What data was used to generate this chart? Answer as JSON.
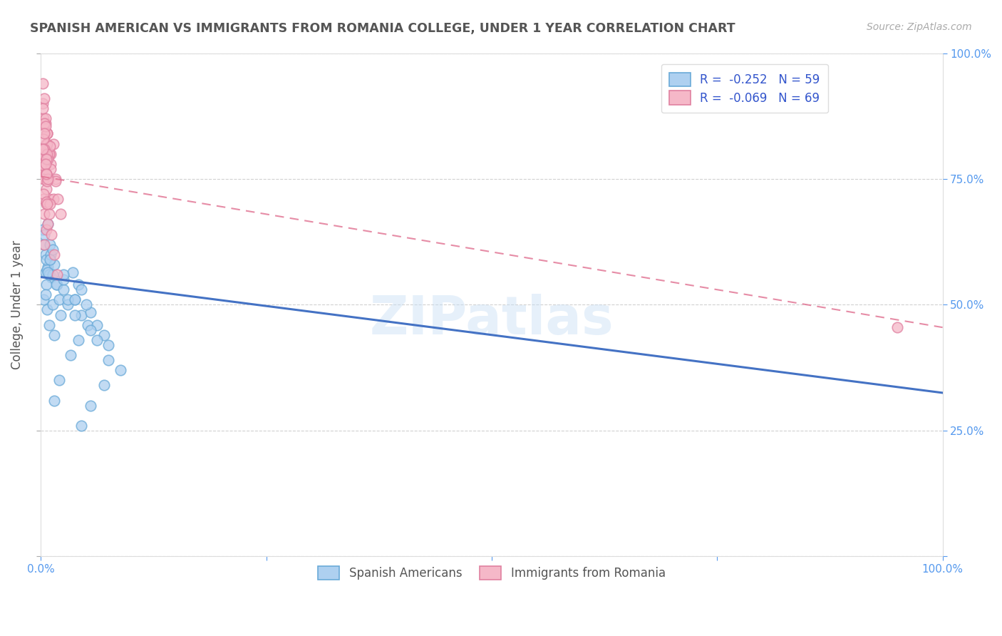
{
  "title": "SPANISH AMERICAN VS IMMIGRANTS FROM ROMANIA COLLEGE, UNDER 1 YEAR CORRELATION CHART",
  "source": "Source: ZipAtlas.com",
  "ylabel": "College, Under 1 year",
  "xlim": [
    0,
    1
  ],
  "ylim": [
    0,
    1
  ],
  "series1_label": "Spanish Americans",
  "series1_R": -0.252,
  "series1_N": 59,
  "series1_color": "#aed0f0",
  "series1_edge_color": "#6aaad8",
  "series1_line_color": "#4472c4",
  "series2_label": "Immigrants from Romania",
  "series2_R": -0.069,
  "series2_N": 69,
  "series2_color": "#f5b8c8",
  "series2_edge_color": "#e080a0",
  "series2_line_color": "#e07090",
  "legend_R_color": "#3355cc",
  "ytick_label_color": "#5599ee",
  "watermark": "ZIPatlas",
  "background_color": "#ffffff",
  "grid_color": "#cccccc",
  "series1_line_x0": 0.0,
  "series1_line_y0": 0.555,
  "series1_line_x1": 1.0,
  "series1_line_y1": 0.325,
  "series2_line_x0": 0.0,
  "series2_line_y0": 0.755,
  "series2_line_x1": 1.0,
  "series2_line_y1": 0.455,
  "series1_x": [
    0.005,
    0.008,
    0.01,
    0.005,
    0.003,
    0.007,
    0.012,
    0.006,
    0.002,
    0.004,
    0.008,
    0.01,
    0.006,
    0.009,
    0.003,
    0.005,
    0.007,
    0.009,
    0.015,
    0.013,
    0.018,
    0.02,
    0.022,
    0.017,
    0.013,
    0.015,
    0.008,
    0.011,
    0.025,
    0.03,
    0.038,
    0.045,
    0.052,
    0.035,
    0.042,
    0.055,
    0.062,
    0.07,
    0.075,
    0.05,
    0.045,
    0.038,
    0.03,
    0.025,
    0.055,
    0.042,
    0.033,
    0.062,
    0.075,
    0.088,
    0.07,
    0.055,
    0.045,
    0.038,
    0.025,
    0.013,
    0.02,
    0.015,
    0.01
  ],
  "series1_y": [
    0.565,
    0.575,
    0.59,
    0.6,
    0.62,
    0.57,
    0.555,
    0.54,
    0.65,
    0.64,
    0.66,
    0.62,
    0.59,
    0.56,
    0.51,
    0.52,
    0.49,
    0.46,
    0.44,
    0.5,
    0.54,
    0.51,
    0.48,
    0.54,
    0.56,
    0.58,
    0.565,
    0.6,
    0.53,
    0.5,
    0.51,
    0.48,
    0.46,
    0.565,
    0.54,
    0.485,
    0.46,
    0.44,
    0.42,
    0.5,
    0.53,
    0.48,
    0.51,
    0.55,
    0.45,
    0.43,
    0.4,
    0.43,
    0.39,
    0.37,
    0.34,
    0.3,
    0.26,
    0.51,
    0.56,
    0.61,
    0.35,
    0.31,
    0.59
  ],
  "series2_x": [
    0.003,
    0.005,
    0.007,
    0.002,
    0.004,
    0.006,
    0.009,
    0.004,
    0.002,
    0.005,
    0.007,
    0.009,
    0.004,
    0.006,
    0.002,
    0.004,
    0.006,
    0.009,
    0.004,
    0.006,
    0.011,
    0.009,
    0.014,
    0.011,
    0.016,
    0.019,
    0.022,
    0.016,
    0.011,
    0.014,
    0.007,
    0.009,
    0.003,
    0.005,
    0.007,
    0.003,
    0.006,
    0.004,
    0.002,
    0.005,
    0.008,
    0.01,
    0.003,
    0.006,
    0.004,
    0.002,
    0.005,
    0.007,
    0.003,
    0.006,
    0.008,
    0.004,
    0.003,
    0.006,
    0.004,
    0.002,
    0.005,
    0.007,
    0.003,
    0.006,
    0.009,
    0.012,
    0.015,
    0.018,
    0.008,
    0.01,
    0.006,
    0.007,
    0.95
  ],
  "series2_y": [
    0.87,
    0.86,
    0.84,
    0.9,
    0.91,
    0.82,
    0.8,
    0.78,
    0.94,
    0.87,
    0.84,
    0.8,
    0.86,
    0.82,
    0.78,
    0.75,
    0.73,
    0.71,
    0.68,
    0.65,
    0.78,
    0.75,
    0.71,
    0.77,
    0.75,
    0.71,
    0.68,
    0.745,
    0.8,
    0.82,
    0.84,
    0.8,
    0.76,
    0.8,
    0.82,
    0.81,
    0.79,
    0.775,
    0.8,
    0.76,
    0.79,
    0.815,
    0.83,
    0.76,
    0.81,
    0.89,
    0.855,
    0.8,
    0.75,
    0.7,
    0.66,
    0.62,
    0.71,
    0.79,
    0.84,
    0.81,
    0.78,
    0.745,
    0.72,
    0.705,
    0.68,
    0.64,
    0.6,
    0.56,
    0.75,
    0.7,
    0.76,
    0.7,
    0.455
  ]
}
